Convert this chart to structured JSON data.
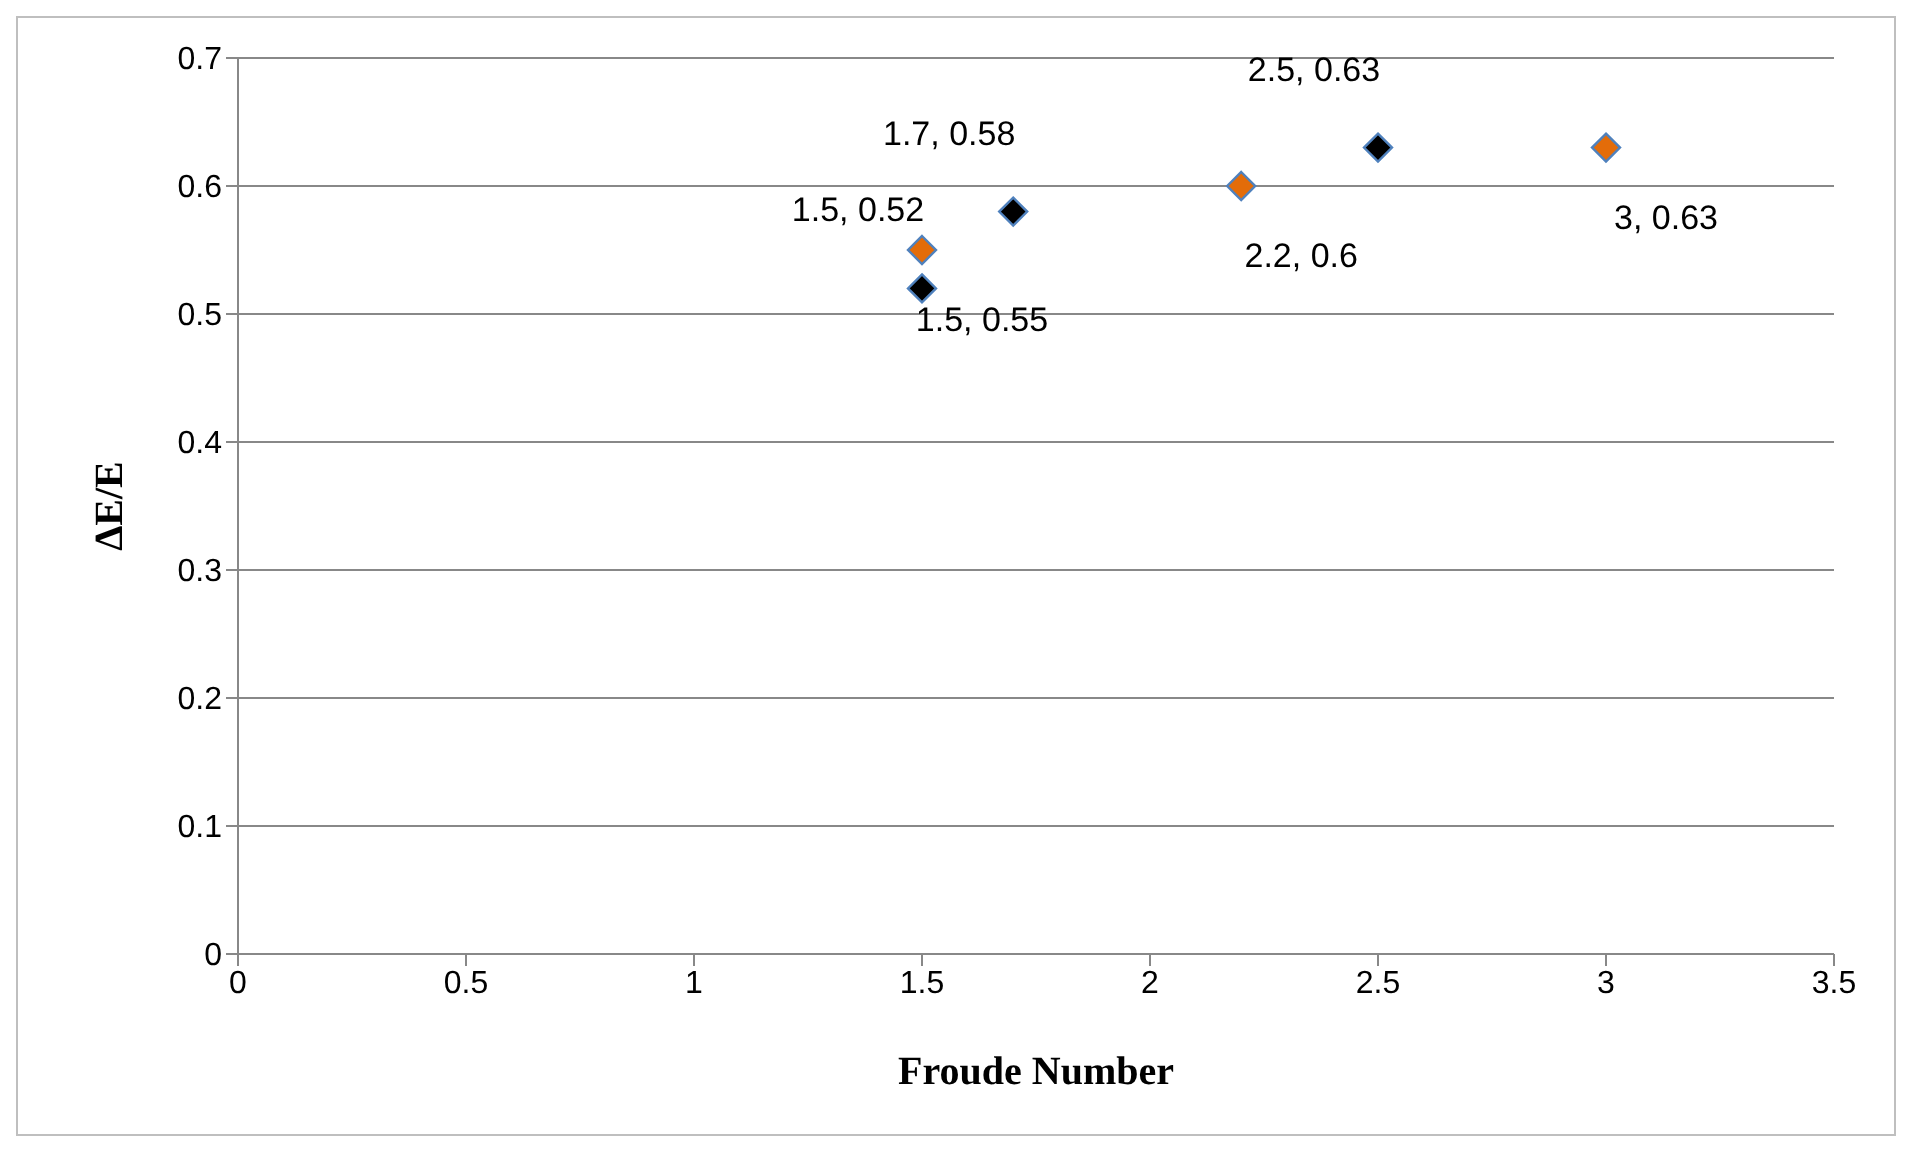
{
  "chart_data": {
    "type": "scatter",
    "xlabel": "Froude Number",
    "ylabel": "ΔE/E",
    "series": [
      {
        "color": "#000000",
        "x": [
          1.5,
          1.7,
          2.5
        ],
        "values": [
          0.52,
          0.58,
          0.63
        ],
        "value_labels": [
          "1.5, 0.52",
          "1.7, 0.58",
          "2.5, 0.63"
        ]
      },
      {
        "color": "#e36c09",
        "x": [
          1.5,
          2.2,
          3
        ],
        "values": [
          0.55,
          0.6,
          0.63
        ],
        "value_labels": [
          "1.5, 0.55",
          "2.2, 0.6",
          "3, 0.63"
        ]
      }
    ],
    "xlim": [
      0,
      3.5
    ],
    "xticks": [
      0,
      0.5,
      1,
      1.5,
      2,
      2.5,
      3,
      3.5
    ],
    "ylim": [
      0,
      0.7
    ],
    "yticks": [
      0,
      0.1,
      0.2,
      0.3,
      0.4,
      0.5,
      0.6,
      0.7
    ],
    "grid": "y",
    "marker": "diamond",
    "legend": false
  }
}
